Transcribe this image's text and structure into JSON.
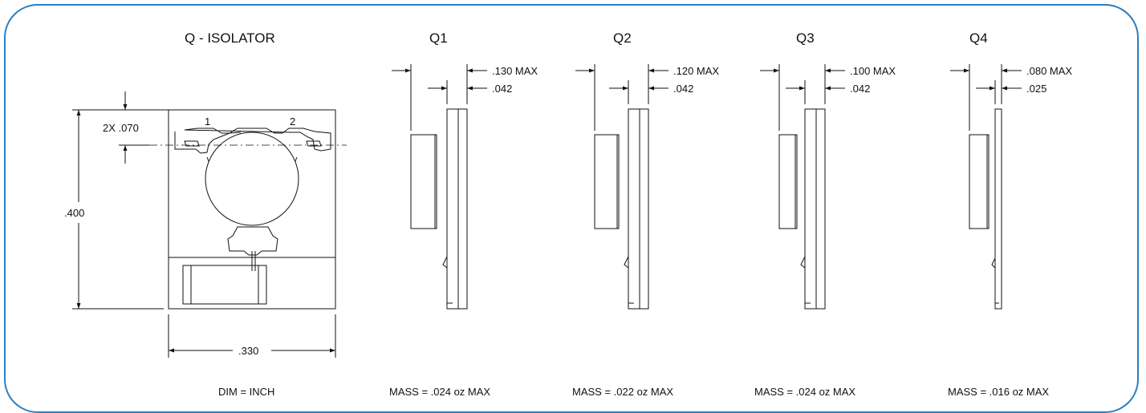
{
  "drawing": {
    "main_view": {
      "title": "Q - ISOLATOR",
      "pin_labels": [
        "1",
        "2"
      ],
      "dim_hole": "2X .070",
      "dim_height": ".400",
      "dim_width": ".330",
      "units_note": "DIM = INCH"
    },
    "side_views": [
      {
        "title": "Q1",
        "dim_max": ".130 MAX",
        "dim_plate": ".042",
        "mass": "MASS  =  .024 oz MAX"
      },
      {
        "title": "Q2",
        "dim_max": ".120 MAX",
        "dim_plate": ".042",
        "mass": "MASS  =  .022 oz MAX"
      },
      {
        "title": "Q3",
        "dim_max": ".100 MAX",
        "dim_plate": ".042",
        "mass": "MASS  =  .024 oz MAX"
      },
      {
        "title": "Q4",
        "dim_max": ".080 MAX",
        "dim_plate": ".025",
        "mass": "MASS  =  .016 oz MAX"
      }
    ],
    "colors": {
      "frame": "#2a7fc1",
      "lines": "#111111"
    }
  }
}
